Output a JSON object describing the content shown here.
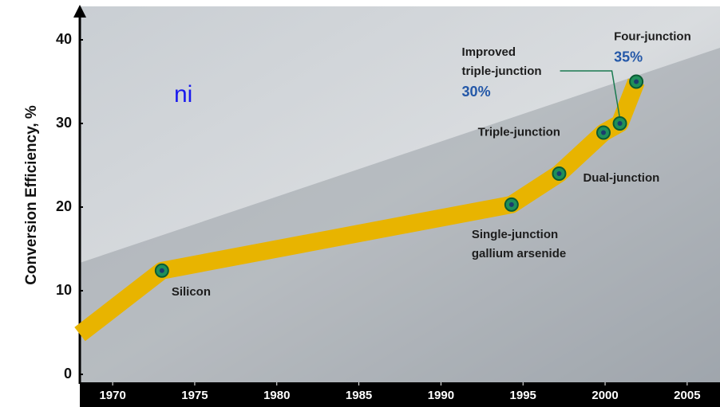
{
  "slide_fragment": "ni",
  "chart_data": {
    "type": "line",
    "ylabel": "Conversion Efficiency, %",
    "xlim": [
      1968,
      2007
    ],
    "ylim": [
      -1,
      44
    ],
    "xticks": [
      1970,
      1975,
      1980,
      1985,
      1990,
      1995,
      2000,
      2005
    ],
    "yticks": [
      0,
      10,
      20,
      30,
      40
    ],
    "series": [
      {
        "color": "#e8b400",
        "x": [
          1968,
          1973,
          1994.3,
          1997.2,
          1999.9,
          2000.9,
          2001.9
        ],
        "values": [
          4.8,
          12.4,
          20.3,
          24,
          28.9,
          30,
          35
        ],
        "point_labels": [
          null,
          [
            "Silicon"
          ],
          [
            "Single-junction",
            "gallium arsenide"
          ],
          [
            "Dual-junction"
          ],
          [
            "Triple-junction"
          ],
          [
            "Improved",
            "triple-junction"
          ],
          [
            "Four-junction"
          ]
        ],
        "value_labels": [
          null,
          null,
          null,
          null,
          null,
          "30%",
          "35%"
        ]
      }
    ]
  }
}
